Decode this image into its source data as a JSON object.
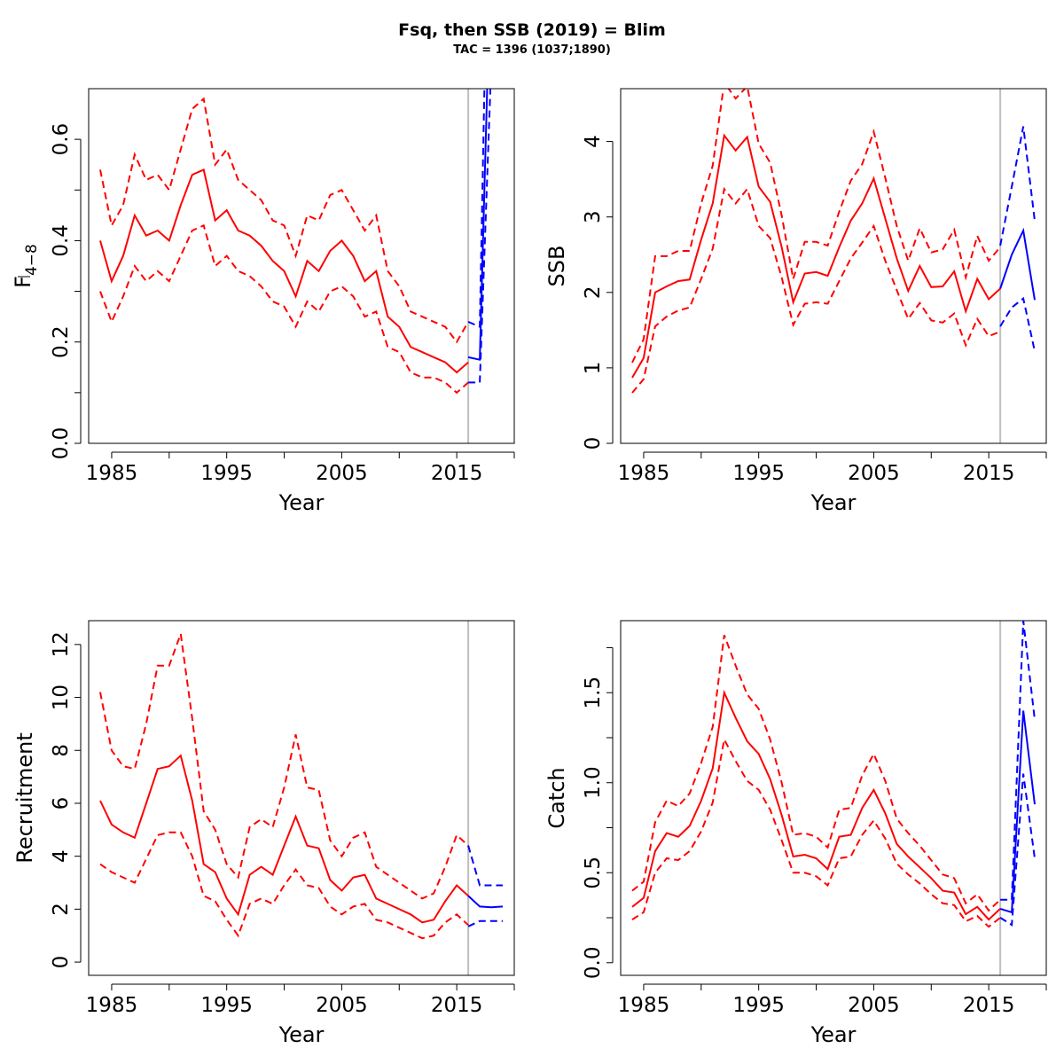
{
  "title": "Fsq, then SSB (2019) = Blim",
  "subtitle": "TAC = 1396 (1037;1890)",
  "colors": {
    "historic": "#ff0000",
    "forecast": "#0000ff",
    "divider": "#bebebe",
    "axis": "#000000"
  },
  "chart_data": [
    {
      "type": "line",
      "xlabel": "Year",
      "ylabel": "F̄ 4–8",
      "ylabel_main": "F",
      "ylabel_sub": "4−8",
      "xlim": [
        1983,
        2020
      ],
      "ylim": [
        0,
        0.7
      ],
      "xticks": [
        1985,
        1990,
        1995,
        2000,
        2005,
        2010,
        2015,
        2020
      ],
      "xtick_labels": [
        "1985",
        "1995",
        "2005",
        "2015"
      ],
      "yticks": [
        0,
        0.1,
        0.2,
        0.3,
        0.4,
        0.5,
        0.6
      ],
      "ytick_labels": [
        "0.0",
        "0.2",
        "0.4",
        "0.6"
      ],
      "divider_year": 2016,
      "historic": {
        "years": [
          1984,
          1985,
          1986,
          1987,
          1988,
          1989,
          1990,
          1991,
          1992,
          1993,
          1994,
          1995,
          1996,
          1997,
          1998,
          1999,
          2000,
          2001,
          2002,
          2003,
          2004,
          2005,
          2006,
          2007,
          2008,
          2009,
          2010,
          2011,
          2012,
          2013,
          2014,
          2015,
          2016
        ],
        "estimate": [
          0.4,
          0.32,
          0.37,
          0.45,
          0.41,
          0.42,
          0.4,
          0.47,
          0.53,
          0.54,
          0.44,
          0.46,
          0.42,
          0.41,
          0.39,
          0.36,
          0.34,
          0.29,
          0.36,
          0.34,
          0.38,
          0.4,
          0.37,
          0.32,
          0.34,
          0.25,
          0.23,
          0.19,
          0.18,
          0.17,
          0.16,
          0.14,
          0.16
        ],
        "low": [
          0.3,
          0.24,
          0.29,
          0.35,
          0.32,
          0.34,
          0.32,
          0.37,
          0.42,
          0.43,
          0.35,
          0.37,
          0.34,
          0.33,
          0.31,
          0.28,
          0.27,
          0.23,
          0.28,
          0.26,
          0.3,
          0.31,
          0.29,
          0.25,
          0.26,
          0.19,
          0.18,
          0.14,
          0.13,
          0.13,
          0.12,
          0.1,
          0.12
        ],
        "high": [
          0.54,
          0.43,
          0.47,
          0.57,
          0.52,
          0.53,
          0.5,
          0.58,
          0.66,
          0.68,
          0.55,
          0.58,
          0.52,
          0.5,
          0.48,
          0.44,
          0.43,
          0.37,
          0.45,
          0.44,
          0.49,
          0.5,
          0.46,
          0.42,
          0.45,
          0.34,
          0.31,
          0.26,
          0.25,
          0.24,
          0.23,
          0.2,
          0.24
        ]
      },
      "forecast": {
        "years": [
          2016,
          2017,
          2018
        ],
        "estimate": [
          0.17,
          0.165,
          1.0
        ],
        "low": [
          0.12,
          0.12,
          0.75
        ],
        "high": [
          0.24,
          0.23,
          1.4
        ]
      }
    },
    {
      "type": "line",
      "xlabel": "Year",
      "ylabel": "SSB",
      "xlim": [
        1983,
        2020
      ],
      "ylim": [
        0,
        4.7
      ],
      "xticks": [
        1985,
        1990,
        1995,
        2000,
        2005,
        2010,
        2015,
        2020
      ],
      "xtick_labels": [
        "1985",
        "1995",
        "2005",
        "2015"
      ],
      "yticks": [
        0,
        1,
        2,
        3,
        4
      ],
      "ytick_labels": [
        "0",
        "1",
        "2",
        "3",
        "4"
      ],
      "divider_year": 2016,
      "historic": {
        "years": [
          1984,
          1985,
          1986,
          1987,
          1988,
          1989,
          1990,
          1991,
          1992,
          1993,
          1994,
          1995,
          1996,
          1997,
          1998,
          1999,
          2000,
          2001,
          2002,
          2003,
          2004,
          2005,
          2006,
          2007,
          2008,
          2009,
          2010,
          2011,
          2012,
          2013,
          2014,
          2015,
          2016
        ],
        "estimate": [
          0.87,
          1.13,
          2.0,
          2.08,
          2.15,
          2.17,
          2.7,
          3.18,
          4.08,
          3.88,
          4.06,
          3.4,
          3.2,
          2.6,
          1.87,
          2.25,
          2.27,
          2.22,
          2.6,
          2.95,
          3.18,
          3.51,
          2.98,
          2.45,
          2.02,
          2.35,
          2.07,
          2.08,
          2.28,
          1.75,
          2.18,
          1.91,
          2.05
        ],
        "low": [
          0.67,
          0.85,
          1.55,
          1.68,
          1.76,
          1.8,
          2.18,
          2.58,
          3.37,
          3.18,
          3.37,
          2.88,
          2.72,
          2.2,
          1.57,
          1.85,
          1.87,
          1.85,
          2.15,
          2.45,
          2.66,
          2.88,
          2.42,
          2.03,
          1.65,
          1.86,
          1.63,
          1.6,
          1.72,
          1.3,
          1.65,
          1.42,
          1.48
        ],
        "high": [
          1.07,
          1.38,
          2.48,
          2.48,
          2.55,
          2.55,
          3.18,
          3.68,
          4.78,
          4.57,
          4.73,
          3.97,
          3.72,
          3.02,
          2.18,
          2.67,
          2.67,
          2.62,
          3.07,
          3.48,
          3.7,
          4.13,
          3.52,
          2.88,
          2.42,
          2.85,
          2.53,
          2.57,
          2.83,
          2.2,
          2.75,
          2.42,
          2.6
        ]
      },
      "forecast": {
        "years": [
          2016,
          2017,
          2018,
          2019
        ],
        "estimate": [
          2.05,
          2.5,
          2.82,
          1.9
        ],
        "low": [
          1.55,
          1.8,
          1.92,
          1.22
        ],
        "high": [
          2.62,
          3.4,
          4.2,
          2.95
        ]
      }
    },
    {
      "type": "line",
      "xlabel": "Year",
      "ylabel": "Recruitment",
      "xlim": [
        1983,
        2020
      ],
      "ylim": [
        -0.5,
        12.9
      ],
      "xticks": [
        1985,
        1990,
        1995,
        2000,
        2005,
        2010,
        2015,
        2020
      ],
      "xtick_labels": [
        "1985",
        "1995",
        "2005",
        "2015"
      ],
      "yticks": [
        0,
        2,
        4,
        6,
        8,
        10,
        12
      ],
      "ytick_labels": [
        "0",
        "2",
        "4",
        "6",
        "8",
        "10",
        "12"
      ],
      "divider_year": 2016,
      "historic": {
        "years": [
          1984,
          1985,
          1986,
          1987,
          1988,
          1989,
          1990,
          1991,
          1992,
          1993,
          1994,
          1995,
          1996,
          1997,
          1998,
          1999,
          2000,
          2001,
          2002,
          2003,
          2004,
          2005,
          2006,
          2007,
          2008,
          2009,
          2010,
          2011,
          2012,
          2013,
          2014,
          2015,
          2016
        ],
        "estimate": [
          6.1,
          5.2,
          4.9,
          4.7,
          6.0,
          7.3,
          7.4,
          7.8,
          6.1,
          3.7,
          3.4,
          2.4,
          1.8,
          3.3,
          3.6,
          3.3,
          4.4,
          5.5,
          4.4,
          4.3,
          3.1,
          2.7,
          3.2,
          3.3,
          2.4,
          2.2,
          2.0,
          1.8,
          1.5,
          1.6,
          2.3,
          2.9,
          2.5
        ],
        "low": [
          3.7,
          3.4,
          3.2,
          3.0,
          3.9,
          4.8,
          4.9,
          4.9,
          4.0,
          2.5,
          2.3,
          1.6,
          1.0,
          2.2,
          2.4,
          2.2,
          2.9,
          3.5,
          2.9,
          2.8,
          2.1,
          1.8,
          2.1,
          2.2,
          1.6,
          1.5,
          1.3,
          1.1,
          0.9,
          1.0,
          1.5,
          1.8,
          1.4
        ],
        "high": [
          10.2,
          8.0,
          7.4,
          7.3,
          9.0,
          11.2,
          11.2,
          12.4,
          9.2,
          5.7,
          5.0,
          3.7,
          3.2,
          5.1,
          5.4,
          5.1,
          6.6,
          8.6,
          6.6,
          6.5,
          4.6,
          4.0,
          4.7,
          4.9,
          3.6,
          3.3,
          3.0,
          2.7,
          2.4,
          2.6,
          3.6,
          4.8,
          4.4
        ]
      },
      "forecast": {
        "years": [
          2016,
          2017,
          2018,
          2019
        ],
        "estimate": [
          2.5,
          2.1,
          2.07,
          2.1
        ],
        "low": [
          1.35,
          1.55,
          1.55,
          1.55
        ],
        "high": [
          4.4,
          2.9,
          2.9,
          2.9
        ]
      }
    },
    {
      "type": "line",
      "xlabel": "Year",
      "ylabel": "Catch",
      "xlim": [
        1983,
        2020
      ],
      "ylim": [
        -0.07,
        1.9
      ],
      "xticks": [
        1985,
        1990,
        1995,
        2000,
        2005,
        2010,
        2015,
        2020
      ],
      "xtick_labels": [
        "1985",
        "1995",
        "2005",
        "2015"
      ],
      "yticks": [
        0,
        0.25,
        0.5,
        0.75,
        1.0,
        1.25,
        1.5,
        1.75
      ],
      "ytick_labels": [
        "0.0",
        "0.5",
        "1.0",
        "1.5"
      ],
      "divider_year": 2016,
      "historic": {
        "years": [
          1984,
          1985,
          1986,
          1987,
          1988,
          1989,
          1990,
          1991,
          1992,
          1993,
          1994,
          1995,
          1996,
          1997,
          1998,
          1999,
          2000,
          2001,
          2002,
          2003,
          2004,
          2005,
          2006,
          2007,
          2008,
          2009,
          2010,
          2011,
          2012,
          2013,
          2014,
          2015,
          2016
        ],
        "estimate": [
          0.31,
          0.36,
          0.62,
          0.72,
          0.7,
          0.76,
          0.9,
          1.08,
          1.5,
          1.36,
          1.23,
          1.16,
          1.02,
          0.82,
          0.59,
          0.6,
          0.58,
          0.52,
          0.7,
          0.71,
          0.86,
          0.96,
          0.83,
          0.66,
          0.59,
          0.53,
          0.47,
          0.4,
          0.39,
          0.27,
          0.31,
          0.24,
          0.3
        ],
        "low": [
          0.24,
          0.28,
          0.5,
          0.58,
          0.57,
          0.62,
          0.73,
          0.89,
          1.24,
          1.12,
          1.01,
          0.96,
          0.85,
          0.68,
          0.5,
          0.5,
          0.48,
          0.43,
          0.58,
          0.59,
          0.71,
          0.79,
          0.69,
          0.55,
          0.49,
          0.44,
          0.38,
          0.33,
          0.32,
          0.23,
          0.26,
          0.2,
          0.25
        ],
        "high": [
          0.4,
          0.45,
          0.78,
          0.9,
          0.87,
          0.94,
          1.11,
          1.31,
          1.82,
          1.65,
          1.49,
          1.41,
          1.24,
          1.0,
          0.71,
          0.72,
          0.7,
          0.64,
          0.85,
          0.86,
          1.04,
          1.16,
          1.01,
          0.8,
          0.72,
          0.65,
          0.57,
          0.49,
          0.47,
          0.33,
          0.38,
          0.29,
          0.35
        ]
      },
      "forecast": {
        "years": [
          2016,
          2017,
          2018,
          2019
        ],
        "estimate": [
          0.3,
          0.28,
          1.4,
          0.88
        ],
        "low": [
          0.25,
          0.21,
          1.05,
          0.58
        ],
        "high": [
          0.35,
          0.35,
          1.9,
          1.35
        ]
      }
    }
  ]
}
